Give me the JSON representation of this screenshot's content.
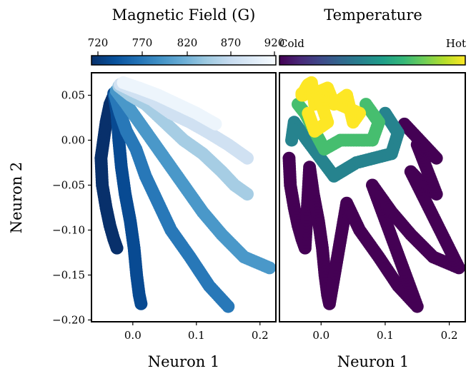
{
  "chart_data": [
    {
      "type": "scatter",
      "panel": "left",
      "title": "Magnetic Field (G)",
      "xlabel": "Neuron 1",
      "ylabel": "Neuron 2",
      "xlim": [
        -0.065,
        0.225
      ],
      "ylim": [
        -0.202,
        0.075
      ],
      "xticks": [
        0.0,
        0.1,
        0.2
      ],
      "xtick_labels": [
        "0.0",
        "0.1",
        "0.2"
      ],
      "yticks": [
        0.05,
        0.0,
        -0.05,
        -0.1,
        -0.15,
        -0.2
      ],
      "ytick_labels": [
        "0.05",
        "0.00",
        "−0.05",
        "−0.10",
        "−0.15",
        "−0.20"
      ],
      "colorbar": {
        "colormap": "Blues",
        "range": [
          720,
          920
        ],
        "ticks": [
          720,
          770,
          820,
          870,
          920
        ],
        "tick_labels": [
          "720",
          "770",
          "820",
          "870",
          "920"
        ],
        "stops": [
          "#08306b",
          "#08519c",
          "#2171b5",
          "#4292c6",
          "#6baed6",
          "#9ecae1",
          "#c6dbef",
          "#deebf7",
          "#f7fbff"
        ]
      },
      "series": [
        {
          "value": 720,
          "points": [
            [
              -0.03,
              0.05
            ],
            [
              -0.036,
              0.04
            ],
            [
              -0.042,
              0.02
            ],
            [
              -0.046,
              0.0
            ],
            [
              -0.05,
              -0.02
            ],
            [
              -0.048,
              -0.05
            ],
            [
              -0.042,
              -0.075
            ],
            [
              -0.036,
              -0.095
            ],
            [
              -0.03,
              -0.11
            ],
            [
              -0.025,
              -0.12
            ]
          ]
        },
        {
          "value": 740,
          "points": [
            [
              -0.03,
              0.052
            ],
            [
              -0.025,
              0.03
            ],
            [
              -0.022,
              0.0
            ],
            [
              -0.018,
              -0.03
            ],
            [
              -0.012,
              -0.06
            ],
            [
              -0.004,
              -0.09
            ],
            [
              0.002,
              -0.12
            ],
            [
              0.006,
              -0.15
            ],
            [
              0.01,
              -0.172
            ],
            [
              0.013,
              -0.182
            ]
          ]
        },
        {
          "value": 775,
          "points": [
            [
              -0.028,
              0.05
            ],
            [
              -0.02,
              0.03
            ],
            [
              -0.01,
              0.01
            ],
            [
              0.005,
              -0.01
            ],
            [
              0.02,
              -0.04
            ],
            [
              0.04,
              -0.07
            ],
            [
              0.06,
              -0.1
            ],
            [
              0.09,
              -0.13
            ],
            [
              0.12,
              -0.162
            ],
            [
              0.15,
              -0.185
            ]
          ]
        },
        {
          "value": 800,
          "points": [
            [
              -0.026,
              0.055
            ],
            [
              -0.01,
              0.04
            ],
            [
              0.01,
              0.02
            ],
            [
              0.03,
              0.0
            ],
            [
              0.055,
              -0.025
            ],
            [
              0.08,
              -0.05
            ],
            [
              0.11,
              -0.08
            ],
            [
              0.14,
              -0.105
            ],
            [
              0.175,
              -0.13
            ],
            [
              0.215,
              -0.142
            ]
          ]
        },
        {
          "value": 850,
          "points": [
            [
              -0.022,
              0.06
            ],
            [
              -0.004,
              0.05
            ],
            [
              0.02,
              0.04
            ],
            [
              0.05,
              0.02
            ],
            [
              0.08,
              0.0
            ],
            [
              0.11,
              -0.015
            ],
            [
              0.14,
              -0.035
            ],
            [
              0.16,
              -0.05
            ],
            [
              0.18,
              -0.06
            ]
          ]
        },
        {
          "value": 880,
          "points": [
            [
              -0.02,
              0.062
            ],
            [
              0.0,
              0.055
            ],
            [
              0.03,
              0.045
            ],
            [
              0.06,
              0.03
            ],
            [
              0.09,
              0.02
            ],
            [
              0.12,
              0.008
            ],
            [
              0.15,
              -0.005
            ],
            [
              0.18,
              -0.02
            ]
          ]
        },
        {
          "value": 910,
          "points": [
            [
              -0.015,
              0.064
            ],
            [
              0.01,
              0.058
            ],
            [
              0.04,
              0.05
            ],
            [
              0.07,
              0.04
            ],
            [
              0.1,
              0.03
            ],
            [
              0.13,
              0.018
            ]
          ]
        }
      ]
    },
    {
      "type": "scatter",
      "panel": "right",
      "title": "Temperature",
      "xlabel": "Neuron 1",
      "xlim": [
        -0.065,
        0.225
      ],
      "ylim": [
        -0.202,
        0.075
      ],
      "xticks": [
        0.0,
        0.1,
        0.2
      ],
      "xtick_labels": [
        "0.0",
        "0.1",
        "0.2"
      ],
      "colorbar": {
        "colormap": "viridis",
        "left_label": "Cold",
        "right_label": "Hot",
        "stops": [
          "#440154",
          "#482878",
          "#3e4989",
          "#31688e",
          "#26828e",
          "#1f9e89",
          "#35b779",
          "#6ece58",
          "#b5de2b",
          "#fde725"
        ]
      },
      "series": [
        {
          "value": 0.0,
          "points": [
            [
              -0.05,
              -0.02
            ],
            [
              -0.048,
              -0.05
            ],
            [
              -0.042,
              -0.075
            ],
            [
              -0.036,
              -0.095
            ],
            [
              -0.03,
              -0.11
            ],
            [
              -0.025,
              -0.12
            ],
            [
              -0.018,
              -0.03
            ],
            [
              -0.012,
              -0.06
            ],
            [
              -0.004,
              -0.09
            ],
            [
              0.002,
              -0.12
            ],
            [
              0.006,
              -0.15
            ],
            [
              0.01,
              -0.172
            ],
            [
              0.013,
              -0.182
            ],
            [
              0.04,
              -0.07
            ],
            [
              0.06,
              -0.1
            ],
            [
              0.09,
              -0.13
            ],
            [
              0.12,
              -0.162
            ],
            [
              0.15,
              -0.185
            ],
            [
              0.08,
              -0.05
            ],
            [
              0.11,
              -0.08
            ],
            [
              0.14,
              -0.105
            ],
            [
              0.175,
              -0.13
            ],
            [
              0.215,
              -0.142
            ],
            [
              0.14,
              -0.035
            ],
            [
              0.16,
              -0.05
            ],
            [
              0.18,
              -0.06
            ],
            [
              0.15,
              -0.005
            ],
            [
              0.18,
              -0.02
            ],
            [
              0.13,
              0.018
            ]
          ]
        },
        {
          "value": 0.45,
          "points": [
            [
              -0.046,
              0.0
            ],
            [
              -0.042,
              0.02
            ],
            [
              -0.022,
              0.0
            ],
            [
              0.02,
              -0.04
            ],
            [
              0.055,
              -0.025
            ],
            [
              0.11,
              -0.015
            ],
            [
              0.12,
              0.008
            ],
            [
              0.1,
              0.03
            ]
          ]
        },
        {
          "value": 0.7,
          "points": [
            [
              -0.036,
              0.04
            ],
            [
              -0.025,
              0.03
            ],
            [
              0.005,
              -0.01
            ],
            [
              0.03,
              0.0
            ],
            [
              0.08,
              0.0
            ],
            [
              0.09,
              0.02
            ],
            [
              0.07,
              0.04
            ]
          ]
        },
        {
          "value": 1.0,
          "points": [
            [
              -0.03,
              0.05
            ],
            [
              -0.03,
              0.052
            ],
            [
              -0.028,
              0.05
            ],
            [
              -0.026,
              0.055
            ],
            [
              -0.022,
              0.06
            ],
            [
              -0.02,
              0.062
            ],
            [
              -0.015,
              0.064
            ],
            [
              -0.01,
              0.04
            ],
            [
              0.0,
              0.055
            ],
            [
              0.01,
              0.058
            ],
            [
              0.02,
              0.04
            ],
            [
              0.03,
              0.045
            ],
            [
              0.04,
              0.05
            ],
            [
              0.05,
              0.02
            ],
            [
              0.06,
              0.03
            ],
            [
              -0.004,
              0.05
            ],
            [
              0.01,
              0.02
            ],
            [
              -0.01,
              0.01
            ],
            [
              -0.02,
              0.03
            ]
          ]
        }
      ]
    }
  ]
}
